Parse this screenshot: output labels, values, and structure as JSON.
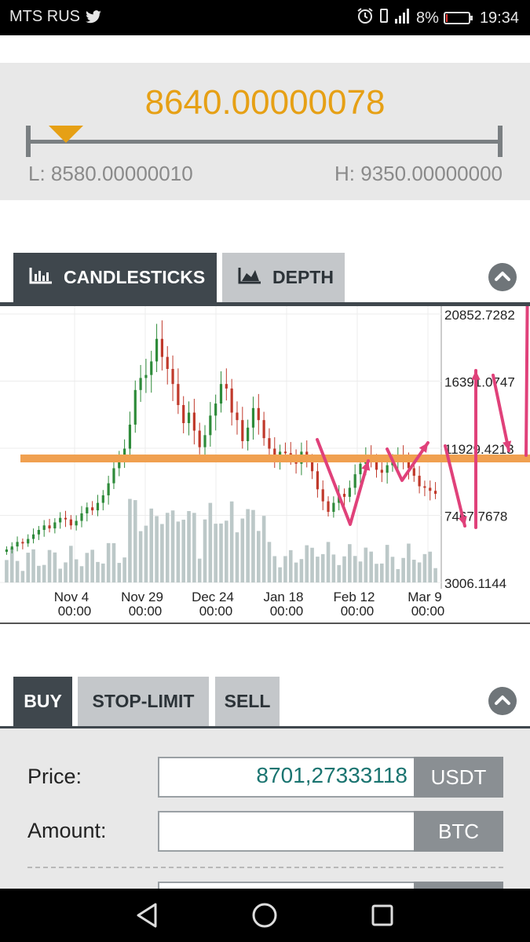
{
  "status_bar": {
    "carrier": "MTS RUS",
    "battery": "8%",
    "battery_level": 0.08,
    "time": "19:34",
    "icons": [
      "twitter-icon",
      "alarm-icon",
      "vibrate-icon",
      "signal-icon",
      "battery-icon"
    ]
  },
  "price_panel": {
    "current_price": "8640.00000078",
    "low": "L: 8580.00000010",
    "high": "H: 9350.00000000",
    "marker_fraction": 0.08
  },
  "chart_tabs": {
    "candlesticks": "CANDLESTICKS",
    "depth": "DEPTH",
    "active": "candlesticks"
  },
  "chart_data": {
    "type": "candlestick",
    "y_tick_labels": [
      "20852.7282",
      "16391.0747",
      "11929.4213",
      "7467.7678",
      "3006.1144"
    ],
    "ylim": [
      3006.1144,
      20852.7282
    ],
    "x_tick_labels": [
      {
        "date": "Nov 4",
        "time": "00:00"
      },
      {
        "date": "Nov 29",
        "time": "00:00"
      },
      {
        "date": "Dec 24",
        "time": "00:00"
      },
      {
        "date": "Jan 18",
        "time": "00:00"
      },
      {
        "date": "Feb 12",
        "time": "00:00"
      },
      {
        "date": "Mar 9",
        "time": "00:00"
      }
    ],
    "close_series_approx": [
      5200,
      5400,
      5700,
      5600,
      5900,
      6200,
      6500,
      6800,
      6600,
      7000,
      7300,
      7200,
      6800,
      7100,
      7600,
      8000,
      7800,
      8300,
      8800,
      9600,
      10600,
      11300,
      11900,
      13500,
      15800,
      16600,
      16800,
      17700,
      19200,
      18000,
      17200,
      16200,
      14800,
      13600,
      14300,
      13100,
      12000,
      12800,
      14100,
      14900,
      16200,
      15900,
      14300,
      13800,
      12400,
      13300,
      14600,
      13800,
      12600,
      11900,
      11300,
      11700,
      11600,
      11400,
      10900,
      11700,
      11100,
      10400,
      9200,
      8400,
      7700,
      8300,
      8900,
      8700,
      9300,
      10200,
      10900,
      11400,
      11100,
      10500,
      10300,
      10800,
      11100,
      11400,
      11200,
      10600,
      10100,
      9400,
      9300,
      9100,
      8900
    ],
    "horizontal_line_price": 11250,
    "grid": true
  },
  "colors": {
    "accent": "#e6a015",
    "up_candle": "#2e8b3a",
    "down_candle": "#c0392b",
    "volume": "#bcc8c8",
    "support_line": "#f0a050",
    "annotation_arrows": "#e0417a",
    "dark_tab": "#3f474d",
    "light_tab": "#c4c7ca",
    "value_text": "#1a7470"
  },
  "order_tabs": {
    "buy": "BUY",
    "stop_limit": "STOP-LIMIT",
    "sell": "SELL",
    "active": "buy"
  },
  "form": {
    "price_label": "Price:",
    "price_value": "8701,27333118",
    "price_unit": "USDT",
    "amount_label": "Amount:",
    "amount_value": "",
    "amount_unit": "BTC"
  },
  "nav_bar": {
    "icons": [
      "back-icon",
      "home-icon",
      "recents-icon"
    ]
  }
}
